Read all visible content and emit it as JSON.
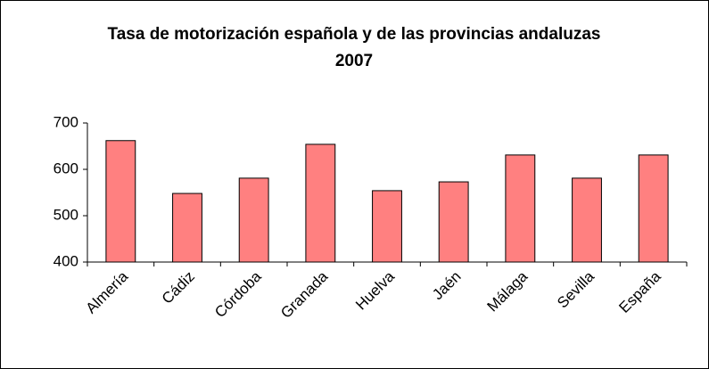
{
  "chart_data": {
    "type": "bar",
    "title": "Tasa de motorización española y de las provincias andaluzas 2007",
    "categories": [
      "Almería",
      "Cádiz",
      "Córdoba",
      "Granada",
      "Huelva",
      "Jaén",
      "Málaga",
      "Sevilla",
      "España"
    ],
    "values": [
      662,
      548,
      581,
      654,
      554,
      573,
      631,
      581,
      631
    ],
    "color": "#ff8080",
    "ylim": [
      400,
      700
    ],
    "yticks": [
      400,
      500,
      600,
      700
    ],
    "grid": false
  }
}
